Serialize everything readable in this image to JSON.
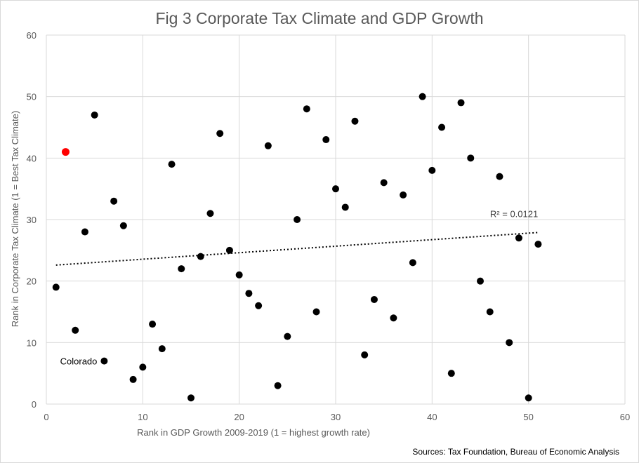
{
  "chart_data": {
    "type": "scatter",
    "title": "Fig 3 Corporate Tax Climate and GDP Growth",
    "xlabel": "Rank in GDP Growth  2009-2019 (1 = highest growth rate)",
    "ylabel": "Rank in Corporate Tax Climate (1 = Best Tax Climate)",
    "xlim": [
      0,
      60
    ],
    "ylim": [
      0,
      60
    ],
    "x_ticks": [
      0,
      10,
      20,
      30,
      40,
      50,
      60
    ],
    "y_ticks": [
      0,
      10,
      20,
      30,
      40,
      50,
      60
    ],
    "grid": true,
    "colors": {
      "point": "#000000",
      "highlight": "#ff0000",
      "grid": "#d9d9d9",
      "text": "#595959"
    },
    "points": [
      {
        "x": 1,
        "y": 19
      },
      {
        "x": 2,
        "y": 41,
        "highlight": true
      },
      {
        "x": 3,
        "y": 12
      },
      {
        "x": 4,
        "y": 28
      },
      {
        "x": 5,
        "y": 47
      },
      {
        "x": 6,
        "y": 7
      },
      {
        "x": 7,
        "y": 33
      },
      {
        "x": 8,
        "y": 29
      },
      {
        "x": 9,
        "y": 4
      },
      {
        "x": 10,
        "y": 6
      },
      {
        "x": 11,
        "y": 13
      },
      {
        "x": 12,
        "y": 9
      },
      {
        "x": 13,
        "y": 39
      },
      {
        "x": 14,
        "y": 22
      },
      {
        "x": 15,
        "y": 1
      },
      {
        "x": 16,
        "y": 24
      },
      {
        "x": 17,
        "y": 31
      },
      {
        "x": 18,
        "y": 44
      },
      {
        "x": 19,
        "y": 25
      },
      {
        "x": 20,
        "y": 21
      },
      {
        "x": 21,
        "y": 18
      },
      {
        "x": 22,
        "y": 16
      },
      {
        "x": 23,
        "y": 42
      },
      {
        "x": 24,
        "y": 3
      },
      {
        "x": 25,
        "y": 11
      },
      {
        "x": 26,
        "y": 30
      },
      {
        "x": 27,
        "y": 48
      },
      {
        "x": 28,
        "y": 15
      },
      {
        "x": 29,
        "y": 43
      },
      {
        "x": 30,
        "y": 35
      },
      {
        "x": 31,
        "y": 32
      },
      {
        "x": 32,
        "y": 46
      },
      {
        "x": 33,
        "y": 8
      },
      {
        "x": 34,
        "y": 17
      },
      {
        "x": 35,
        "y": 36
      },
      {
        "x": 36,
        "y": 14
      },
      {
        "x": 37,
        "y": 34
      },
      {
        "x": 38,
        "y": 23
      },
      {
        "x": 39,
        "y": 50
      },
      {
        "x": 40,
        "y": 38
      },
      {
        "x": 41,
        "y": 45
      },
      {
        "x": 42,
        "y": 5
      },
      {
        "x": 43,
        "y": 49
      },
      {
        "x": 44,
        "y": 40
      },
      {
        "x": 45,
        "y": 20
      },
      {
        "x": 46,
        "y": 15
      },
      {
        "x": 47,
        "y": 37
      },
      {
        "x": 48,
        "y": 10
      },
      {
        "x": 49,
        "y": 27
      },
      {
        "x": 50,
        "y": 1
      },
      {
        "x": 51,
        "y": 26
      }
    ],
    "trendline": {
      "x": [
        1,
        51
      ],
      "y": [
        22.6,
        27.9
      ],
      "label": "R² = 0.0121"
    },
    "annotations": [
      {
        "text": "Colorado",
        "x": 6,
        "y": 7
      }
    ],
    "source": "Sources: Tax Foundation, Bureau of Economic Analysis"
  }
}
